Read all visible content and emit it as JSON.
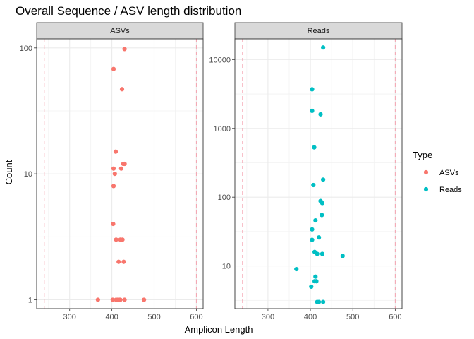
{
  "chart_data": {
    "type": "scatter",
    "title": "Overall Sequence / ASV length distribution",
    "xlabel": "Amplicon Length",
    "ylabel": "Count",
    "y_scale": "log10",
    "grid": true,
    "legend": {
      "title": "Type",
      "position": "right",
      "entries": [
        {
          "name": "ASVs",
          "color": "#F8766D"
        },
        {
          "name": "Reads",
          "color": "#00BFC4"
        }
      ]
    },
    "reference_lines": {
      "x": [
        240,
        600
      ],
      "color": "#F4A3B0",
      "style": "dashed"
    },
    "panels": [
      {
        "name": "ASVs",
        "color": "#F8766D",
        "x_range": [
          222,
          616
        ],
        "y_range": [
          0.85,
          118
        ],
        "x_ticks": [
          300,
          400,
          500,
          600
        ],
        "y_ticks": [
          1,
          10,
          100
        ],
        "y_tick_labels": [
          "1",
          "10",
          "100"
        ],
        "points": [
          {
            "x": 430,
            "y": 98
          },
          {
            "x": 404,
            "y": 68
          },
          {
            "x": 424,
            "y": 47
          },
          {
            "x": 409,
            "y": 15
          },
          {
            "x": 430,
            "y": 12
          },
          {
            "x": 427,
            "y": 12
          },
          {
            "x": 404,
            "y": 11
          },
          {
            "x": 422,
            "y": 11
          },
          {
            "x": 407,
            "y": 10
          },
          {
            "x": 404,
            "y": 8
          },
          {
            "x": 403,
            "y": 4
          },
          {
            "x": 410,
            "y": 3
          },
          {
            "x": 420,
            "y": 3
          },
          {
            "x": 425,
            "y": 3
          },
          {
            "x": 416,
            "y": 2
          },
          {
            "x": 428,
            "y": 2
          },
          {
            "x": 367,
            "y": 1
          },
          {
            "x": 402,
            "y": 1
          },
          {
            "x": 410,
            "y": 1
          },
          {
            "x": 414,
            "y": 1
          },
          {
            "x": 418,
            "y": 1
          },
          {
            "x": 420,
            "y": 1
          },
          {
            "x": 430,
            "y": 1
          },
          {
            "x": 476,
            "y": 1
          }
        ]
      },
      {
        "name": "Reads",
        "color": "#00BFC4",
        "x_range": [
          222,
          616
        ],
        "y_range": [
          2.4,
          20000
        ],
        "x_ticks": [
          300,
          400,
          500,
          600
        ],
        "y_ticks": [
          10,
          100,
          1000,
          10000
        ],
        "y_tick_labels": [
          "10",
          "100",
          "1000",
          "10000"
        ],
        "points": [
          {
            "x": 430,
            "y": 15000
          },
          {
            "x": 404,
            "y": 3700
          },
          {
            "x": 404,
            "y": 1800
          },
          {
            "x": 424,
            "y": 1600
          },
          {
            "x": 409,
            "y": 530
          },
          {
            "x": 430,
            "y": 180
          },
          {
            "x": 407,
            "y": 150
          },
          {
            "x": 424,
            "y": 88
          },
          {
            "x": 428,
            "y": 82
          },
          {
            "x": 427,
            "y": 55
          },
          {
            "x": 412,
            "y": 46
          },
          {
            "x": 404,
            "y": 34
          },
          {
            "x": 420,
            "y": 26
          },
          {
            "x": 404,
            "y": 24
          },
          {
            "x": 410,
            "y": 16
          },
          {
            "x": 416,
            "y": 15
          },
          {
            "x": 428,
            "y": 15
          },
          {
            "x": 476,
            "y": 14
          },
          {
            "x": 367,
            "y": 9
          },
          {
            "x": 412,
            "y": 7
          },
          {
            "x": 414,
            "y": 6
          },
          {
            "x": 410,
            "y": 6
          },
          {
            "x": 402,
            "y": 5
          },
          {
            "x": 416,
            "y": 3
          },
          {
            "x": 420,
            "y": 3
          },
          {
            "x": 430,
            "y": 3
          }
        ]
      }
    ]
  }
}
